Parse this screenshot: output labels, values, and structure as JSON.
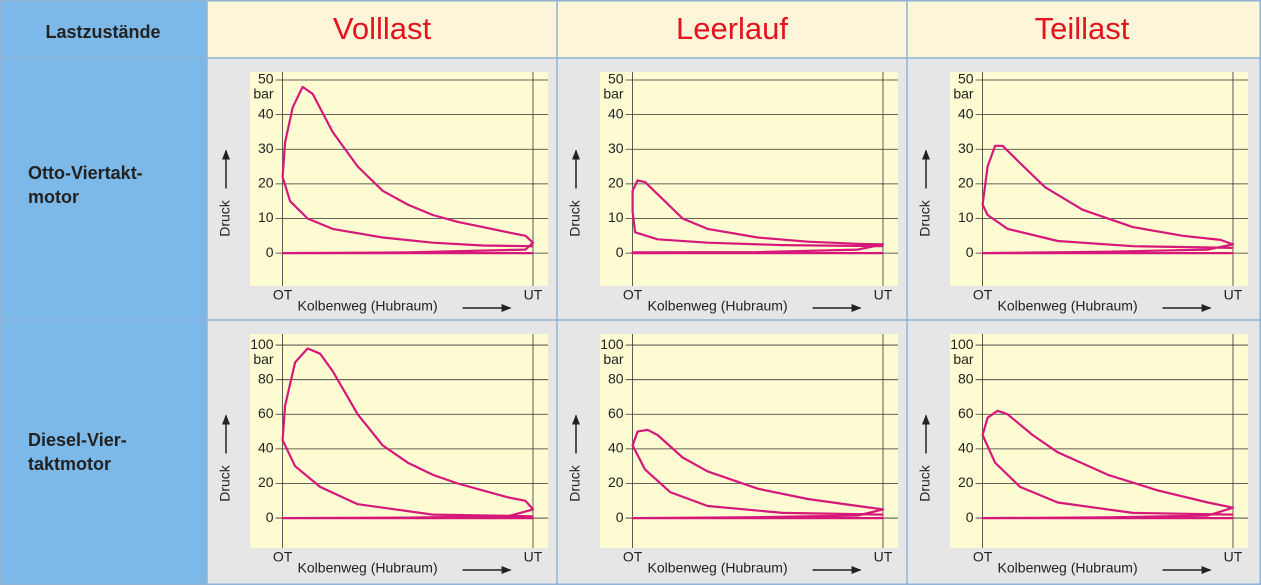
{
  "table": {
    "header": [
      "Lastzustände",
      "Volllast",
      "Leerlauf",
      "Teillast"
    ],
    "rows": [
      [
        "Otto-Viertakt-",
        "motor"
      ],
      [
        "Diesel-Vier-",
        "taktmotor"
      ]
    ]
  },
  "chart_data": [
    {
      "type": "line",
      "ylabel": "Druck",
      "yunit": "bar",
      "xlabel": "Kolbenweg (Hubraum)",
      "color": "#d6187a",
      "grid": true,
      "xlim": [
        -0.13,
        1.06
      ],
      "xticks": [
        {
          "value": 0,
          "label": "OT"
        },
        {
          "value": 1,
          "label": "UT"
        }
      ],
      "ylim": [
        -9.5,
        52.3
      ],
      "yticks": [
        0,
        10,
        20,
        30,
        40,
        50
      ],
      "x": [
        1.0,
        0.8,
        0.6,
        0.4,
        0.2,
        0.1,
        0.03,
        0.0,
        0.01,
        0.04,
        0.08,
        0.12,
        0.2,
        0.3,
        0.4,
        0.5,
        0.6,
        0.7,
        0.8,
        0.9,
        0.97,
        1.0,
        0.97,
        0.5,
        0.0,
        1.0
      ],
      "values": [
        2,
        2.2,
        3,
        4.5,
        7,
        10,
        15,
        22,
        32,
        42,
        48,
        46,
        35,
        25,
        18,
        14,
        11,
        9,
        7.5,
        6,
        5,
        3,
        1,
        0.2,
        0,
        0
      ]
    },
    {
      "type": "line",
      "ylabel": "Druck",
      "yunit": "bar",
      "xlabel": "Kolbenweg (Hubraum)",
      "color": "#d6187a",
      "grid": true,
      "xlim": [
        -0.13,
        1.06
      ],
      "xticks": [
        {
          "value": 0,
          "label": "OT"
        },
        {
          "value": 1,
          "label": "UT"
        }
      ],
      "ylim": [
        -9.5,
        52.3
      ],
      "yticks": [
        0,
        10,
        20,
        30,
        40,
        50
      ],
      "x": [
        1.0,
        0.6,
        0.3,
        0.1,
        0.01,
        0.0,
        0.0,
        0.02,
        0.05,
        0.1,
        0.2,
        0.3,
        0.5,
        0.7,
        0.9,
        1.0,
        0.9,
        0.5,
        0.0,
        0.0,
        1.0
      ],
      "values": [
        2,
        2.3,
        3,
        4,
        6,
        12,
        18,
        21,
        20.5,
        17,
        10,
        7,
        4.5,
        3.3,
        2.7,
        2.5,
        1,
        0.3,
        0.2,
        0,
        0
      ]
    },
    {
      "type": "line",
      "ylabel": "Druck",
      "yunit": "bar",
      "xlabel": "Kolbenweg (Hubraum)",
      "color": "#d6187a",
      "grid": true,
      "xlim": [
        -0.13,
        1.06
      ],
      "xticks": [
        {
          "value": 0,
          "label": "OT"
        },
        {
          "value": 1,
          "label": "UT"
        }
      ],
      "ylim": [
        -9.5,
        52.3
      ],
      "yticks": [
        0,
        10,
        20,
        30,
        40,
        50
      ],
      "x": [
        1.0,
        0.6,
        0.3,
        0.1,
        0.02,
        0.0,
        0.02,
        0.05,
        0.08,
        0.15,
        0.25,
        0.4,
        0.6,
        0.8,
        0.95,
        1.0,
        0.9,
        0.5,
        0.0,
        1.0
      ],
      "values": [
        1.5,
        2,
        3.5,
        7,
        11,
        14,
        25,
        31,
        31,
        26,
        19,
        12.5,
        7.5,
        5,
        3.8,
        2.5,
        1,
        0.4,
        0,
        0
      ]
    },
    {
      "type": "line",
      "ylabel": "Druck",
      "yunit": "bar",
      "xlabel": "Kolbenweg (Hubraum)",
      "color": "#d6187a",
      "grid": true,
      "xlim": [
        -0.13,
        1.06
      ],
      "xticks": [
        {
          "value": 0,
          "label": "OT"
        },
        {
          "value": 1,
          "label": "UT"
        }
      ],
      "ylim": [
        -17.3,
        106.4
      ],
      "yticks": [
        0,
        20,
        40,
        60,
        80,
        100
      ],
      "x": [
        1.0,
        0.6,
        0.3,
        0.15,
        0.05,
        0.0,
        0.01,
        0.05,
        0.1,
        0.15,
        0.2,
        0.3,
        0.4,
        0.5,
        0.6,
        0.7,
        0.8,
        0.9,
        0.97,
        1.0,
        0.9,
        0.5,
        0.0,
        1.0
      ],
      "values": [
        1,
        2,
        8,
        18,
        30,
        45,
        65,
        90,
        98,
        95,
        85,
        60,
        42,
        32,
        25,
        20,
        16,
        12,
        10,
        5,
        1,
        0.3,
        0,
        0
      ]
    },
    {
      "type": "line",
      "ylabel": "Druck",
      "yunit": "bar",
      "xlabel": "Kolbenweg (Hubraum)",
      "color": "#d6187a",
      "grid": true,
      "xlim": [
        -0.13,
        1.06
      ],
      "xticks": [
        {
          "value": 0,
          "label": "OT"
        },
        {
          "value": 1,
          "label": "UT"
        }
      ],
      "ylim": [
        -17.3,
        106.4
      ],
      "yticks": [
        0,
        20,
        40,
        60,
        80,
        100
      ],
      "x": [
        1.0,
        0.6,
        0.3,
        0.15,
        0.05,
        0.0,
        0.02,
        0.06,
        0.1,
        0.2,
        0.3,
        0.5,
        0.7,
        0.9,
        1.0,
        0.9,
        0.5,
        0.0,
        1.0
      ],
      "values": [
        2,
        3,
        7,
        15,
        28,
        42,
        50,
        51,
        48,
        35,
        27,
        17,
        11,
        7,
        5,
        1.5,
        0.5,
        0,
        0
      ]
    },
    {
      "type": "line",
      "ylabel": "Druck",
      "yunit": "bar",
      "xlabel": "Kolbenweg (Hubraum)",
      "color": "#d6187a",
      "grid": true,
      "xlim": [
        -0.13,
        1.06
      ],
      "xticks": [
        {
          "value": 0,
          "label": "OT"
        },
        {
          "value": 1,
          "label": "UT"
        }
      ],
      "ylim": [
        -17.3,
        106.4
      ],
      "yticks": [
        0,
        20,
        40,
        60,
        80,
        100
      ],
      "x": [
        1.0,
        0.6,
        0.3,
        0.15,
        0.05,
        0.0,
        0.02,
        0.06,
        0.1,
        0.2,
        0.3,
        0.5,
        0.7,
        0.9,
        1.0,
        0.9,
        0.5,
        0.0,
        1.0
      ],
      "values": [
        2,
        3,
        9,
        18,
        32,
        48,
        58,
        62,
        60,
        48,
        38,
        25,
        16,
        9,
        6,
        1.5,
        0.4,
        0,
        0
      ]
    }
  ]
}
